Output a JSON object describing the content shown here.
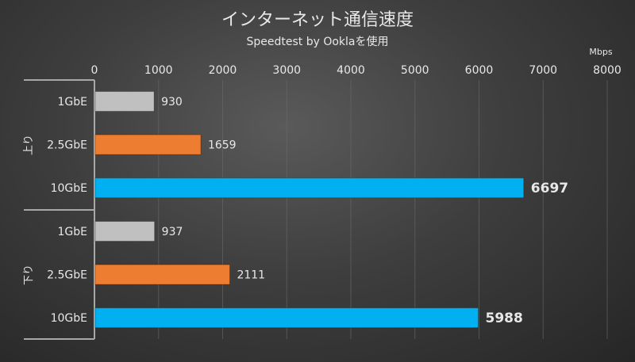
{
  "chart_data": {
    "type": "bar",
    "orientation": "horizontal",
    "title": "インターネット通信速度",
    "subtitle": "Speedtest by Ooklaを使用",
    "unit": "Mbps",
    "xlim": [
      0,
      8000
    ],
    "xticks": [
      "0",
      "1000",
      "2000",
      "3000",
      "4000",
      "5000",
      "6000",
      "7000",
      "8000"
    ],
    "grid": true,
    "groups": [
      {
        "name": "上り",
        "bars": [
          {
            "category": "1GbE",
            "value": 930,
            "label": "930"
          },
          {
            "category": "2.5GbE",
            "value": 1659,
            "label": "1659"
          },
          {
            "category": "10GbE",
            "value": 6697,
            "label": "6697"
          }
        ]
      },
      {
        "name": "下り",
        "bars": [
          {
            "category": "1GbE",
            "value": 937,
            "label": "937"
          },
          {
            "category": "2.5GbE",
            "value": 2111,
            "label": "2111"
          },
          {
            "category": "10GbE",
            "value": 5988,
            "label": "5988"
          }
        ]
      }
    ],
    "colors": {
      "1GbE": "#c0c0c0",
      "2.5GbE": "#ed7d31",
      "10GbE": "#00b0f0"
    }
  }
}
